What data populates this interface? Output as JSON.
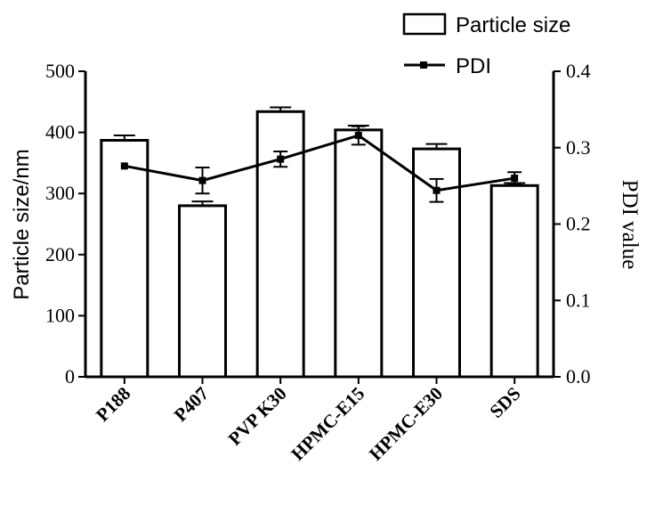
{
  "chart_data": {
    "type": "bar",
    "categories": [
      "P188",
      "P407",
      "PVP K30",
      "HPMC-E15",
      "HPMC-E30",
      "SDS"
    ],
    "series": [
      {
        "name": "Particle size",
        "kind": "bar",
        "axis": "left",
        "values": [
          387,
          280,
          434,
          404,
          373,
          313
        ],
        "errors": [
          8,
          7,
          7,
          7,
          8,
          4
        ]
      },
      {
        "name": "PDI",
        "kind": "line",
        "axis": "right",
        "values": [
          0.276,
          0.257,
          0.285,
          0.316,
          0.244,
          0.26
        ],
        "errors": [
          0.0,
          0.017,
          0.01,
          0.012,
          0.015,
          0.008
        ]
      }
    ],
    "ylabel": "Particle size/nm",
    "y2label": "PDI value",
    "ylim": [
      0,
      500
    ],
    "y2lim": [
      0,
      0.4
    ],
    "yticks": [
      "0",
      "100",
      "200",
      "300",
      "400",
      "500"
    ],
    "y2ticks": [
      "0.0",
      "0.1",
      "0.2",
      "0.3",
      "0.4"
    ],
    "grid": false,
    "legend_position": "top-right",
    "colors": {
      "bar_fill": "#ffffff",
      "stroke": "#000000"
    }
  }
}
